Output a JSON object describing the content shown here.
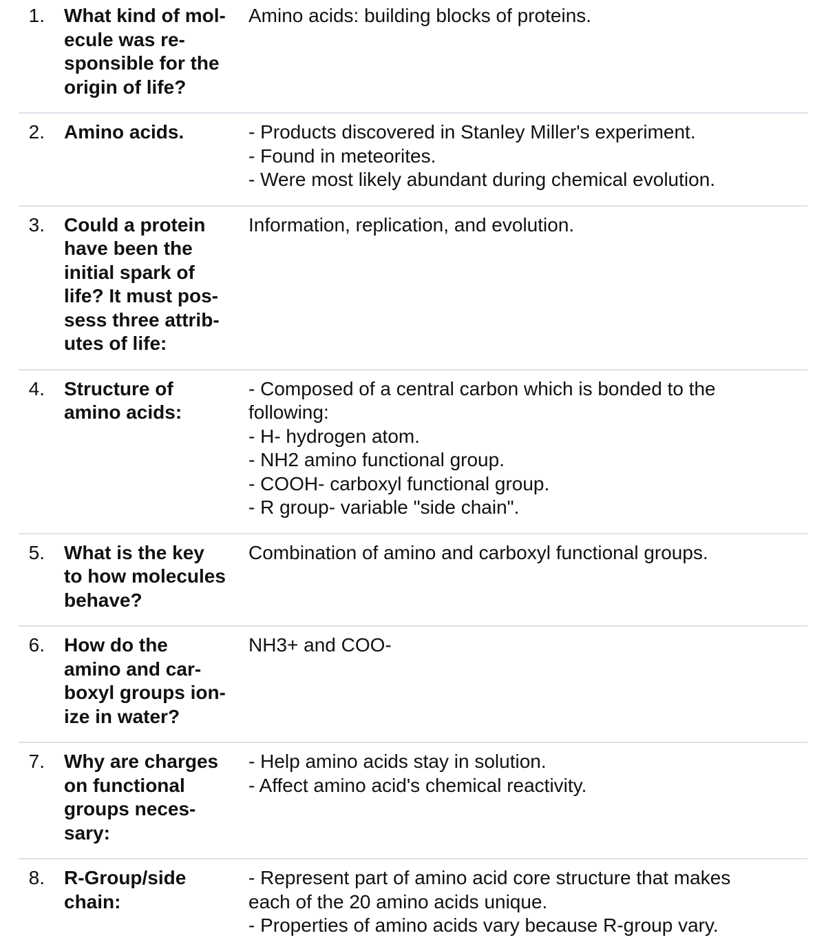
{
  "cards": [
    {
      "number": "1.",
      "term": "What kind of mol-\necule was re-\nsponsible for the\norigin of life?",
      "definition": "Amino acids: building blocks of proteins."
    },
    {
      "number": "2.",
      "term": "Amino acids.",
      "definition": "- Products discovered in Stanley Miller's experiment.\n- Found in meteorites.\n- Were most likely abundant during chemical evolution."
    },
    {
      "number": "3.",
      "term": "Could a protein\nhave been the\ninitial spark of\nlife? It must pos-\nsess three attrib-\nutes of life:",
      "definition": "Information, replication, and evolution."
    },
    {
      "number": "4.",
      "term": "Structure of\namino acids:",
      "definition": "- Composed of a central carbon which is bonded to the\nfollowing:\n- H- hydrogen atom.\n- NH2 amino functional group.\n- COOH- carboxyl functional group.\n- R group- variable \"side chain\"."
    },
    {
      "number": "5.",
      "term": "What is the key\nto how molecules\nbehave?",
      "definition": "Combination of amino and carboxyl functional groups."
    },
    {
      "number": "6.",
      "term": "How do the\namino and car-\nboxyl groups ion-\nize in water?",
      "definition": "NH3+ and COO-"
    },
    {
      "number": "7.",
      "term": "Why are charges\non functional\ngroups neces-\nsary:",
      "definition": "- Help amino acids stay in solution.\n- Affect amino acid's chemical reactivity."
    },
    {
      "number": "8.",
      "term": "R-Group/side\nchain:",
      "definition": "- Represent part of amino acid core structure that makes\neach of the 20 amino acids unique.\n- Properties of amino acids vary because R-group vary."
    }
  ]
}
